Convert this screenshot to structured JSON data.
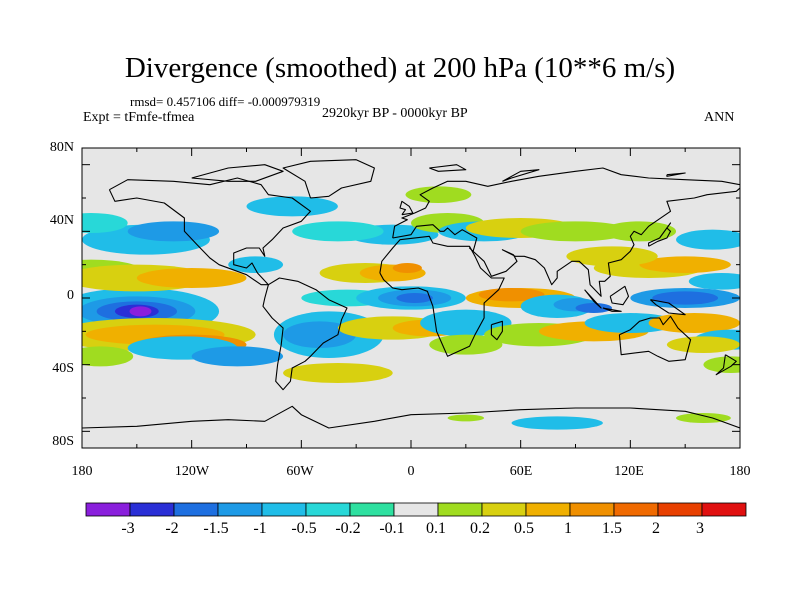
{
  "title": "Divergence (smoothed) at 200 hPa (10**6 m/s)",
  "stats": "rmsd= 0.457106 diff= -0.000979319",
  "experiment": "Expt = tFmfe-tfmea",
  "period": "2920kyr BP - 0000kyr BP",
  "season": "ANN",
  "lat_ticks": [
    "80N",
    "40N",
    "0",
    "40S",
    "80S"
  ],
  "lon_ticks": [
    "180",
    "120W",
    "60W",
    "0",
    "60E",
    "120E",
    "180"
  ],
  "colorbar": {
    "labels": [
      "-3",
      "-2",
      "-1.5",
      "-1",
      "-0.5",
      "-0.2",
      "-0.1",
      "0.1",
      "0.2",
      "0.5",
      "1",
      "1.5",
      "2",
      "3"
    ],
    "colors": [
      "#8a1fdc",
      "#2a2fd6",
      "#1e6fe0",
      "#1e9ae6",
      "#20bde8",
      "#28d8d8",
      "#2ee0a0",
      "#e6e6e6",
      "#a0dc20",
      "#d8d010",
      "#f0b000",
      "#f09000",
      "#f06a00",
      "#e84000",
      "#e01010"
    ]
  },
  "map": {
    "background_color": "#e6e6e6",
    "coastline_color": "#000000",
    "lon_range": [
      -180,
      180
    ],
    "lat_range": [
      -90,
      90
    ]
  }
}
